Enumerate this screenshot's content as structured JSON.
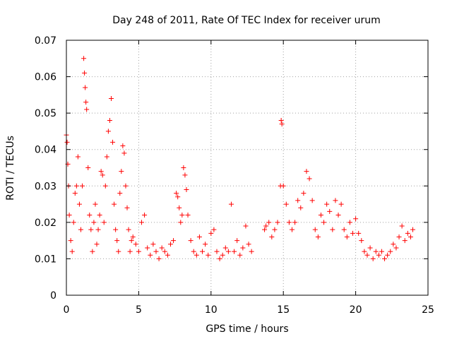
{
  "chart_data": {
    "type": "scatter",
    "title": "Day 248 of 2011, Rate Of TEC Index for receiver urum",
    "xlabel": "GPS time / hours",
    "ylabel": "ROTI / TECUs",
    "xlim": [
      0,
      25
    ],
    "ylim": [
      0,
      0.07
    ],
    "x_ticks": [
      0,
      5,
      10,
      15,
      20,
      25
    ],
    "x_tick_labels": [
      "0",
      "5",
      "10",
      "15",
      "20",
      "25"
    ],
    "y_ticks": [
      0,
      0.01,
      0.02,
      0.03,
      0.04,
      0.05,
      0.06,
      0.07
    ],
    "y_tick_labels": [
      "0",
      "0.01",
      "0.02",
      "0.03",
      "0.04",
      "0.05",
      "0.06",
      "0.07"
    ],
    "grid": true,
    "marker": "+",
    "series": [
      {
        "color": "#ff0000",
        "x": [
          0.0,
          0.05,
          0.1,
          0.15,
          0.2,
          0.3,
          0.4,
          0.5,
          0.6,
          0.7,
          0.8,
          0.9,
          1.0,
          1.1,
          1.2,
          1.25,
          1.3,
          1.35,
          1.4,
          1.5,
          1.6,
          1.7,
          1.8,
          1.9,
          2.0,
          2.1,
          2.2,
          2.3,
          2.4,
          2.5,
          2.6,
          2.7,
          2.8,
          2.9,
          3.0,
          3.1,
          3.2,
          3.3,
          3.4,
          3.5,
          3.6,
          3.7,
          3.8,
          3.9,
          4.0,
          4.1,
          4.2,
          4.3,
          4.4,
          4.5,
          4.6,
          4.8,
          5.0,
          5.2,
          5.4,
          5.6,
          5.8,
          6.0,
          6.2,
          6.4,
          6.6,
          6.8,
          7.0,
          7.2,
          7.4,
          7.6,
          7.7,
          7.8,
          7.9,
          8.0,
          8.1,
          8.2,
          8.3,
          8.4,
          8.6,
          8.8,
          9.0,
          9.2,
          9.4,
          9.6,
          9.8,
          10.0,
          10.2,
          10.4,
          10.6,
          10.8,
          11.0,
          11.2,
          11.4,
          11.6,
          11.8,
          12.0,
          12.2,
          12.4,
          12.6,
          12.8,
          13.7,
          13.8,
          14.0,
          14.2,
          14.4,
          14.6,
          14.8,
          14.85,
          14.9,
          15.0,
          15.2,
          15.4,
          15.6,
          15.8,
          16.0,
          16.2,
          16.4,
          16.6,
          16.8,
          17.0,
          17.2,
          17.4,
          17.6,
          17.8,
          18.0,
          18.2,
          18.4,
          18.6,
          18.8,
          19.0,
          19.2,
          19.4,
          19.6,
          19.8,
          20.0,
          20.2,
          20.4,
          20.6,
          20.8,
          21.0,
          21.2,
          21.4,
          21.6,
          21.8,
          22.0,
          22.2,
          22.4,
          22.6,
          22.8,
          23.0,
          23.2,
          23.4,
          23.6,
          23.8,
          23.95
        ],
        "y": [
          0.044,
          0.042,
          0.036,
          0.03,
          0.022,
          0.015,
          0.012,
          0.02,
          0.028,
          0.03,
          0.038,
          0.025,
          0.018,
          0.03,
          0.065,
          0.061,
          0.057,
          0.053,
          0.051,
          0.035,
          0.022,
          0.018,
          0.012,
          0.02,
          0.025,
          0.014,
          0.018,
          0.022,
          0.034,
          0.033,
          0.02,
          0.03,
          0.038,
          0.045,
          0.048,
          0.054,
          0.042,
          0.025,
          0.018,
          0.015,
          0.012,
          0.028,
          0.034,
          0.041,
          0.039,
          0.03,
          0.024,
          0.018,
          0.012,
          0.015,
          0.016,
          0.014,
          0.012,
          0.02,
          0.022,
          0.013,
          0.011,
          0.014,
          0.012,
          0.01,
          0.013,
          0.012,
          0.011,
          0.014,
          0.015,
          0.028,
          0.027,
          0.024,
          0.02,
          0.022,
          0.035,
          0.033,
          0.029,
          0.022,
          0.015,
          0.012,
          0.011,
          0.016,
          0.012,
          0.014,
          0.011,
          0.017,
          0.018,
          0.012,
          0.01,
          0.011,
          0.013,
          0.012,
          0.025,
          0.012,
          0.015,
          0.011,
          0.013,
          0.019,
          0.014,
          0.012,
          0.018,
          0.019,
          0.02,
          0.016,
          0.018,
          0.02,
          0.03,
          0.048,
          0.047,
          0.03,
          0.025,
          0.02,
          0.018,
          0.02,
          0.026,
          0.024,
          0.028,
          0.034,
          0.032,
          0.026,
          0.018,
          0.016,
          0.022,
          0.02,
          0.025,
          0.023,
          0.018,
          0.026,
          0.022,
          0.025,
          0.018,
          0.016,
          0.02,
          0.017,
          0.021,
          0.017,
          0.015,
          0.012,
          0.011,
          0.013,
          0.01,
          0.012,
          0.011,
          0.012,
          0.01,
          0.011,
          0.012,
          0.014,
          0.013,
          0.016,
          0.019,
          0.015,
          0.017,
          0.016,
          0.018
        ]
      }
    ]
  }
}
